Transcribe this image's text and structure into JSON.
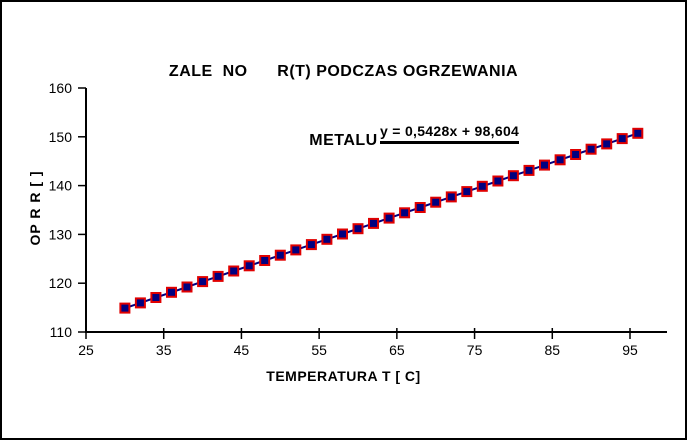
{
  "window": {
    "background": "#ffffff",
    "frame_color": "#000000"
  },
  "title": {
    "line1": "ZALE  NO      R(T) PODCZAS OGRZEWANIA",
    "line2": "METALU"
  },
  "equation_label": "y = 0,5428x + 98,604",
  "axis_titles": {
    "x": "TEMPERATURA T [ C]",
    "y": "OP R R [ ]"
  },
  "colors": {
    "marker_fill": "#000080",
    "marker_border": "#e00000",
    "trendline": "#000080",
    "axis": "#000000",
    "text": "#000000"
  },
  "chart_data": {
    "type": "scatter",
    "title": "ZALE  NO      R(T) PODCZAS OGRZEWANIA METALU",
    "xlabel": "TEMPERATURA T [ C]",
    "ylabel": "OP R R [ ]",
    "xlim": [
      25,
      100
    ],
    "ylim": [
      110,
      160
    ],
    "xticks": [
      25,
      35,
      45,
      55,
      65,
      75,
      85,
      95
    ],
    "yticks": [
      110,
      120,
      130,
      140,
      150,
      160
    ],
    "grid": false,
    "legend": "none",
    "annotation": "y = 0,5428x + 98,604",
    "trendline": {
      "slope": 0.5428,
      "intercept": 98.604,
      "label": "y = 0,5428x + 98,604"
    },
    "series": [
      {
        "marker": "square",
        "x": [
          30,
          32,
          34,
          36,
          38,
          40,
          42,
          44,
          46,
          48,
          50,
          52,
          54,
          56,
          58,
          60,
          62,
          64,
          66,
          68,
          70,
          72,
          74,
          76,
          78,
          80,
          82,
          84,
          86,
          88,
          90,
          92,
          94,
          96
        ],
        "y": [
          114.89,
          115.97,
          117.06,
          118.14,
          119.23,
          120.32,
          121.4,
          122.49,
          123.57,
          124.66,
          125.74,
          126.83,
          127.92,
          129.0,
          130.09,
          131.17,
          132.26,
          133.34,
          134.43,
          135.51,
          136.6,
          137.69,
          138.77,
          139.86,
          140.94,
          142.03,
          143.11,
          144.2,
          145.28,
          146.37,
          147.46,
          148.54,
          149.63,
          150.71
        ]
      }
    ]
  }
}
